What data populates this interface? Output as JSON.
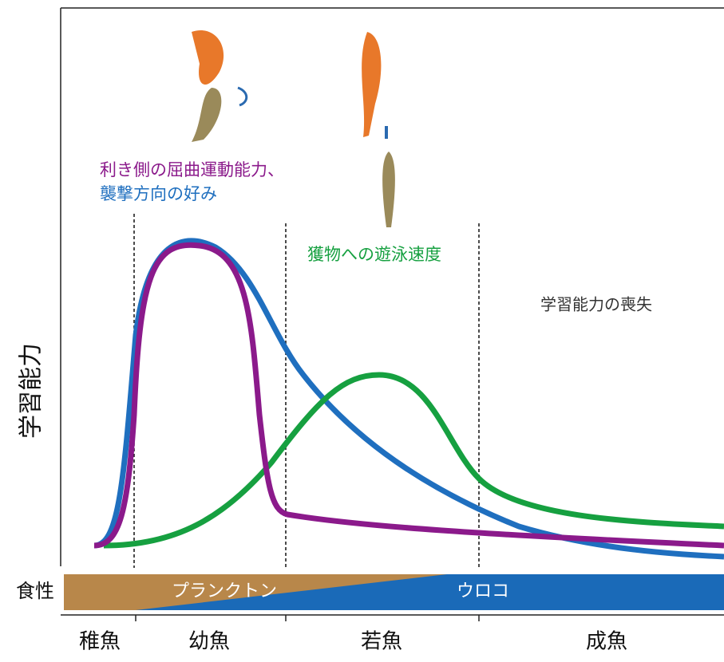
{
  "y_axis_label": "学習能力",
  "annotations": {
    "purple": "利き側の屈曲運動能力、",
    "blue": "襲撃方向の好み",
    "green": "獲物への遊泳速度",
    "gray": "学習能力の喪失"
  },
  "diet": {
    "label": "食性",
    "plankton": "プランクトン",
    "scales": "ウロコ"
  },
  "stages": [
    "稚魚",
    "幼魚",
    "若魚",
    "成魚"
  ]
}
